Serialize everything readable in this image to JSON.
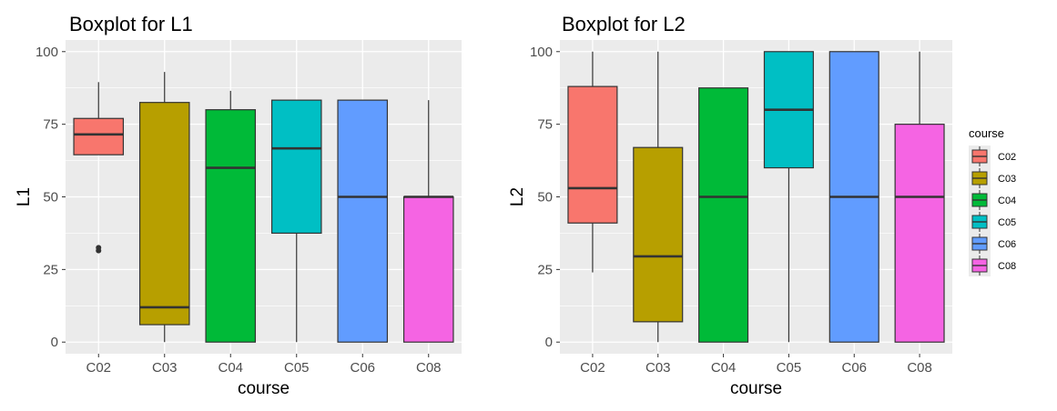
{
  "legend": {
    "title": "course",
    "colors": {
      "C02": "#F8766D",
      "C03": "#B79F00",
      "C04": "#00BA38",
      "C05": "#00BFC4",
      "C06": "#619CFF",
      "C08": "#F564E3"
    }
  },
  "chart_data": [
    {
      "type": "boxplot",
      "title": "Boxplot for L1",
      "xlabel": "course",
      "ylabel": "L1",
      "ylim": [
        -4,
        104
      ],
      "yticks": [
        0,
        25,
        50,
        75,
        100
      ],
      "grid": true,
      "legend": "none",
      "categories": [
        "C02",
        "C03",
        "C04",
        "C05",
        "C06",
        "C08"
      ],
      "boxes": [
        {
          "course": "C02",
          "min": 64.5,
          "q1": 64.5,
          "median": 71.5,
          "q3": 77,
          "max": 89.5,
          "outliers": [
            31.5,
            32.5
          ]
        },
        {
          "course": "C03",
          "min": 0,
          "q1": 6,
          "median": 12,
          "q3": 82.5,
          "max": 93,
          "outliers": []
        },
        {
          "course": "C04",
          "min": 0,
          "q1": 0,
          "median": 60,
          "q3": 80,
          "max": 86.5,
          "outliers": []
        },
        {
          "course": "C05",
          "min": 0,
          "q1": 37.5,
          "median": 66.7,
          "q3": 83.3,
          "max": 83.3,
          "outliers": []
        },
        {
          "course": "C06",
          "min": 0,
          "q1": 0,
          "median": 50,
          "q3": 83.3,
          "max": 83.3,
          "outliers": []
        },
        {
          "course": "C08",
          "min": 0,
          "q1": 0,
          "median": 50,
          "q3": 50,
          "max": 83.3,
          "outliers": []
        }
      ]
    },
    {
      "type": "boxplot",
      "title": "Boxplot for L2",
      "xlabel": "course",
      "ylabel": "L2",
      "ylim": [
        -4,
        104
      ],
      "yticks": [
        0,
        25,
        50,
        75,
        100
      ],
      "grid": true,
      "legend": "right",
      "categories": [
        "C02",
        "C03",
        "C04",
        "C05",
        "C06",
        "C08"
      ],
      "boxes": [
        {
          "course": "C02",
          "min": 24,
          "q1": 41,
          "median": 53,
          "q3": 88,
          "max": 100,
          "outliers": []
        },
        {
          "course": "C03",
          "min": 0,
          "q1": 7,
          "median": 29.5,
          "q3": 67,
          "max": 100,
          "outliers": []
        },
        {
          "course": "C04",
          "min": 0,
          "q1": 0,
          "median": 50,
          "q3": 87.5,
          "max": 87.5,
          "outliers": []
        },
        {
          "course": "C05",
          "min": 0,
          "q1": 60,
          "median": 80,
          "q3": 100,
          "max": 100,
          "outliers": []
        },
        {
          "course": "C06",
          "min": 0,
          "q1": 0,
          "median": 50,
          "q3": 100,
          "max": 100,
          "outliers": []
        },
        {
          "course": "C08",
          "min": 0,
          "q1": 0,
          "median": 50,
          "q3": 75,
          "max": 100,
          "outliers": []
        }
      ]
    }
  ]
}
